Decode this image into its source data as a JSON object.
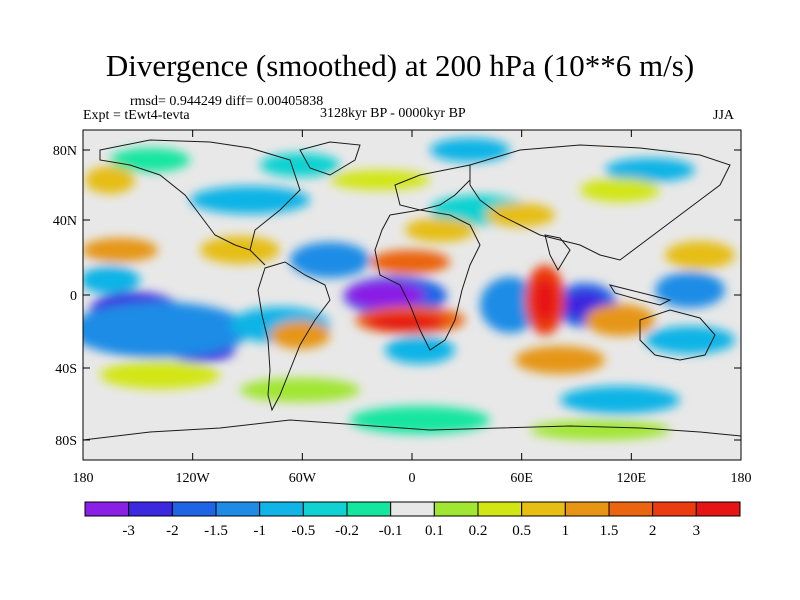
{
  "title": "Divergence (smoothed) at 200 hPa (10**6 m/s)",
  "stats": "rmsd= 0.944249 diff= 0.00405838",
  "experiment": "Expt = tEwt4-tevta",
  "period": "3128kyr BP - 0000kyr BP",
  "season": "JJA",
  "lat_ticks": [
    "80N",
    "40N",
    "0",
    "40S",
    "80S"
  ],
  "lon_ticks": [
    "180",
    "120W",
    "60W",
    "0",
    "60E",
    "120E",
    "180"
  ],
  "colorbar": {
    "labels": [
      "-3",
      "-2",
      "-1.5",
      "-1",
      "-0.5",
      "-0.2",
      "-0.1",
      "0.1",
      "0.2",
      "0.5",
      "1",
      "1.5",
      "2",
      "3"
    ],
    "colors": [
      "#8a1fe6",
      "#3c28e0",
      "#1e64e6",
      "#1e8ce6",
      "#10b4e6",
      "#10d2d2",
      "#14e6a0",
      "#e8e8e8",
      "#a0e632",
      "#d2e614",
      "#e6be14",
      "#e69614",
      "#eb640f",
      "#eb3c0f",
      "#e61414"
    ]
  },
  "colors": {
    "background": "#e8e8e8",
    "coast": "#1a1a1a"
  }
}
